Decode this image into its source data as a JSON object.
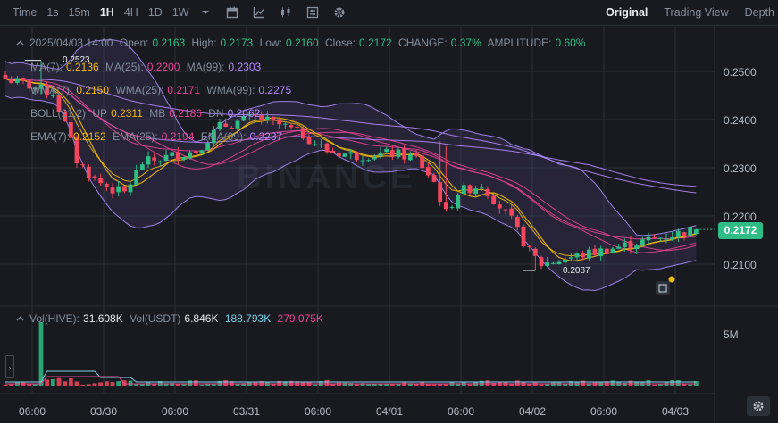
{
  "toolbar": {
    "time_label": "Time",
    "intervals": [
      "1s",
      "15m",
      "1H",
      "4H",
      "1D",
      "1W"
    ],
    "active_interval": "1H",
    "views": [
      "Original",
      "Trading View",
      "Depth"
    ],
    "active_view": "Original"
  },
  "info": {
    "date": "2025/04/03 14:00",
    "open_label": "Open:",
    "open": "0.2163",
    "high_label": "High:",
    "high": "0.2173",
    "low_label": "Low:",
    "low": "0.2160",
    "close_label": "Close:",
    "close": "0.2172",
    "change_label": "CHANGE:",
    "change": "0.37%",
    "amplitude_label": "AMPLITUDE:",
    "amplitude": "0.60%"
  },
  "ma": {
    "ma7_label": "MA(7):",
    "ma7": "0.2136",
    "ma25_label": "MA(25):",
    "ma25": "0.2200",
    "ma99_label": "MA(99):",
    "ma99": "0.2303"
  },
  "wma": {
    "wma7_label": "WMA(7):",
    "wma7": "0.2150",
    "wma25_label": "WMA(25):",
    "wma25": "0.2171",
    "wma99_label": "WMA(99):",
    "wma99": "0.2275"
  },
  "boll": {
    "label": "BOLL(21,2)",
    "up_label": "UP",
    "up": "0.2311",
    "mb_label": "MB",
    "mb": "0.2186",
    "dn_label": "DN",
    "dn": "0.2062"
  },
  "ema": {
    "ema7_label": "EMA(7):",
    "ema7": "0.2152",
    "ema25_label": "EMA(25):",
    "ema25": "0.2194",
    "ema99_label": "EMA(99):",
    "ema99": "0.2237"
  },
  "volume": {
    "hive_label": "Vol(HIVE):",
    "hive": "31.608K",
    "usdt_label": "Vol(USDT)",
    "usdt": "6.846K",
    "ma1": "188.793K",
    "ma2": "279.075K"
  },
  "watermark": "BINANCE",
  "markers": {
    "high_label": "0.2523",
    "low_label": "0.2087"
  },
  "current_price": "0.2172",
  "colors": {
    "up": "#2ebd85",
    "down": "#f6465d",
    "ma7": "#f0b90b",
    "ma25": "#e84393",
    "ma99": "#b388ff",
    "boll": "#a78bfa",
    "background": "#181a20"
  },
  "chart_data": {
    "type": "candlestick",
    "interval": "1H",
    "y_ticks": [
      "0.2500",
      "0.2400",
      "0.2300",
      "0.2200",
      "0.2100"
    ],
    "y_range": [
      0.2035,
      0.255
    ],
    "volume_tick": "5M",
    "x_ticks": [
      "06:00",
      "03/30",
      "06:00",
      "03/31",
      "06:00",
      "04/01",
      "06:00",
      "04/02",
      "06:00",
      "04/03"
    ],
    "x_range": [
      "2025-03-29 18:00",
      "2025-04-03 14:00"
    ],
    "anchors": [
      {
        "t": "2025-03-29 18:00",
        "price": 0.2485
      },
      {
        "t": "2025-03-29 22:00",
        "price": 0.247
      },
      {
        "t": "2025-03-30 02:00",
        "price": 0.2455
      },
      {
        "t": "2025-03-30 04:00",
        "price": 0.239
      },
      {
        "t": "2025-03-30 06:00",
        "price": 0.2315
      },
      {
        "t": "2025-03-30 09:00",
        "price": 0.2275
      },
      {
        "t": "2025-03-30 12:00",
        "price": 0.2255
      },
      {
        "t": "2025-03-30 14:00",
        "price": 0.2248
      },
      {
        "t": "2025-03-30 17:00",
        "price": 0.231
      },
      {
        "t": "2025-03-30 22:00",
        "price": 0.2325
      },
      {
        "t": "2025-03-31 02:00",
        "price": 0.2335
      },
      {
        "t": "2025-03-31 06:00",
        "price": 0.2385
      },
      {
        "t": "2025-03-31 12:00",
        "price": 0.2405
      },
      {
        "t": "2025-03-31 17:00",
        "price": 0.2385
      },
      {
        "t": "2025-03-31 20:00",
        "price": 0.2368
      },
      {
        "t": "2025-04-01 00:00",
        "price": 0.2335
      },
      {
        "t": "2025-04-01 05:00",
        "price": 0.2325
      },
      {
        "t": "2025-04-01 11:00",
        "price": 0.233
      },
      {
        "t": "2025-04-01 15:00",
        "price": 0.232
      },
      {
        "t": "2025-04-01 18:00",
        "price": 0.227
      },
      {
        "t": "2025-04-01 20:00",
        "price": 0.2205
      },
      {
        "t": "2025-04-01 22:00",
        "price": 0.225
      },
      {
        "t": "2025-04-02 02:00",
        "price": 0.2265
      },
      {
        "t": "2025-04-02 04:00",
        "price": 0.2235
      },
      {
        "t": "2025-04-02 07:00",
        "price": 0.219
      },
      {
        "t": "2025-04-02 10:00",
        "price": 0.2125
      },
      {
        "t": "2025-04-02 12:00",
        "price": 0.21
      },
      {
        "t": "2025-04-03 14:00",
        "price": 0.2172
      }
    ],
    "spikes": [
      {
        "t": "2025-03-30 00:00",
        "high": 0.2523
      },
      {
        "t": "2025-04-01 19:00",
        "high": 0.2355
      },
      {
        "t": "2025-04-01 20:00",
        "high": 0.2345
      },
      {
        "t": "2025-04-02 11:00",
        "low": 0.2087
      }
    ],
    "volume_series": [
      {
        "name": "Vol(HIVE)"
      },
      {
        "name": "Vol(USDT)"
      }
    ],
    "volume_spike": {
      "t": "2025-03-30 00:00",
      "value_label": "5M"
    }
  }
}
